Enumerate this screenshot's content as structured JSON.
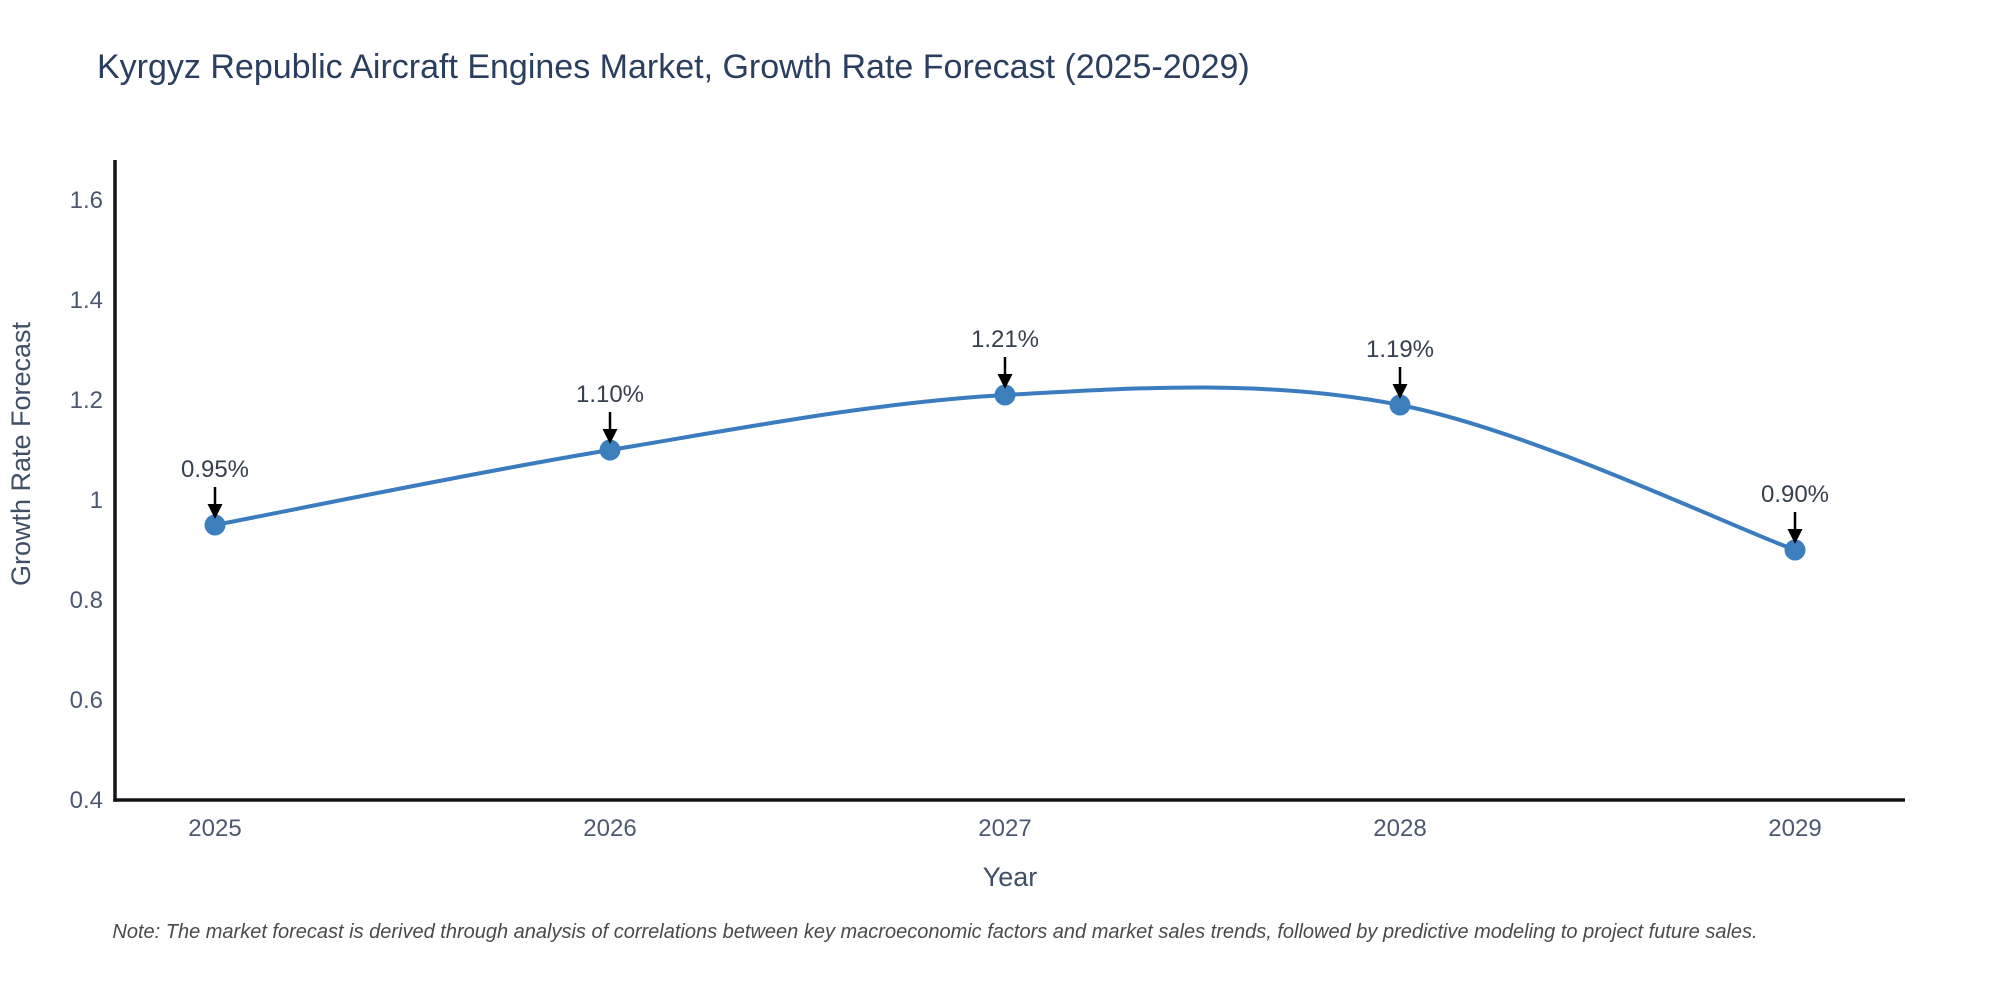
{
  "title": "Kyrgyz Republic Aircraft Engines Market, Growth Rate Forecast (2025-2029)",
  "note": "Note: The market forecast is derived through analysis of correlations between key macroeconomic factors and market sales trends, followed by predictive modeling to project future sales.",
  "chart_data": {
    "type": "line",
    "title": "Kyrgyz Republic Aircraft Engines Market, Growth Rate Forecast (2025-2029)",
    "xlabel": "Year",
    "ylabel": "Growth Rate Forecast",
    "x": [
      2025,
      2026,
      2027,
      2028,
      2029
    ],
    "values": [
      0.95,
      1.1,
      1.21,
      1.19,
      0.9
    ],
    "point_labels": [
      "0.95%",
      "1.10%",
      "1.21%",
      "1.19%",
      "0.90%"
    ],
    "x_tick_labels": [
      "2025",
      "2026",
      "2027",
      "2028",
      "2029"
    ],
    "y_ticks": [
      0.4,
      0.6,
      0.8,
      1.0,
      1.2,
      1.4,
      1.6
    ],
    "y_tick_labels": [
      "0.4",
      "0.6",
      "0.8",
      "1",
      "1.2",
      "1.4",
      "1.6"
    ],
    "ylim": [
      0.4,
      1.68
    ],
    "line_shape": "spline",
    "grid": false,
    "legend": "none",
    "markers": true,
    "annotations": "value labels with downward arrows above each point"
  },
  "colors": {
    "line": "#3a7cbd",
    "marker": "#3d7ebd",
    "arrow": "#000000",
    "title_text": "#2a3f5f",
    "axis_title_text": "#3f4f66",
    "tick_text": "#4c5870",
    "annotation_text": "#36404e",
    "axis_line": "#111418",
    "note_text": "#4a4a4a",
    "background": "#ffffff"
  }
}
